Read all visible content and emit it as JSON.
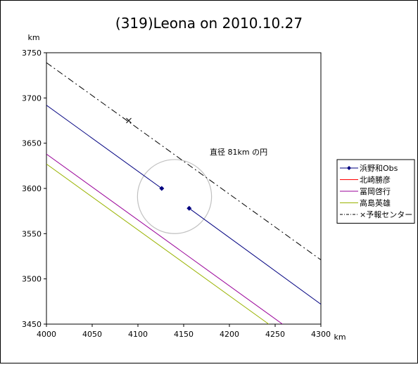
{
  "chart_data": {
    "type": "line",
    "title": "(319)Leona on 2010.10.27",
    "xlabel": "km",
    "ylabel": "km",
    "xlim": [
      4000,
      4300
    ],
    "ylim": [
      3450,
      3750
    ],
    "xticks": [
      "4000",
      "4050",
      "4100",
      "4150",
      "4200",
      "4250",
      "4300"
    ],
    "yticks": [
      "3450",
      "3500",
      "3550",
      "3600",
      "3650",
      "3700",
      "3750"
    ],
    "grid": false,
    "legend_position": "right",
    "series": [
      {
        "name": "浜野和Obs",
        "color": "#000080",
        "style": "solid",
        "segments": [
          [
            [
              4000,
              3692
            ],
            [
              4126,
              3600
            ]
          ],
          [
            [
              4156,
              3578
            ],
            [
              4300,
              3472
            ]
          ]
        ],
        "markers": [
          [
            4126,
            3600
          ],
          [
            4156,
            3578
          ]
        ]
      },
      {
        "name": "北崎勝彦",
        "color": "#ff0000",
        "style": "solid",
        "segments": []
      },
      {
        "name": "冨岡啓行",
        "color": "#990099",
        "style": "solid",
        "segments": [
          [
            [
              4000,
              3638
            ],
            [
              4258,
              3450
            ]
          ]
        ]
      },
      {
        "name": "高島英雄",
        "color": "#99b300",
        "style": "solid",
        "segments": [
          [
            [
              4000,
              3627
            ],
            [
              4243,
              3450
            ]
          ]
        ]
      },
      {
        "name": "×予報センター",
        "color": "#000000",
        "style": "dashdot",
        "segments": [
          [
            [
              4000,
              3739
            ],
            [
              4300,
              3521
            ]
          ]
        ],
        "markers": [
          [
            4090,
            3675
          ]
        ]
      }
    ],
    "circle": {
      "center": [
        4140,
        3591
      ],
      "diameter": 81,
      "color": "#c0c0c0"
    },
    "annotation": "直径 81km の円"
  }
}
